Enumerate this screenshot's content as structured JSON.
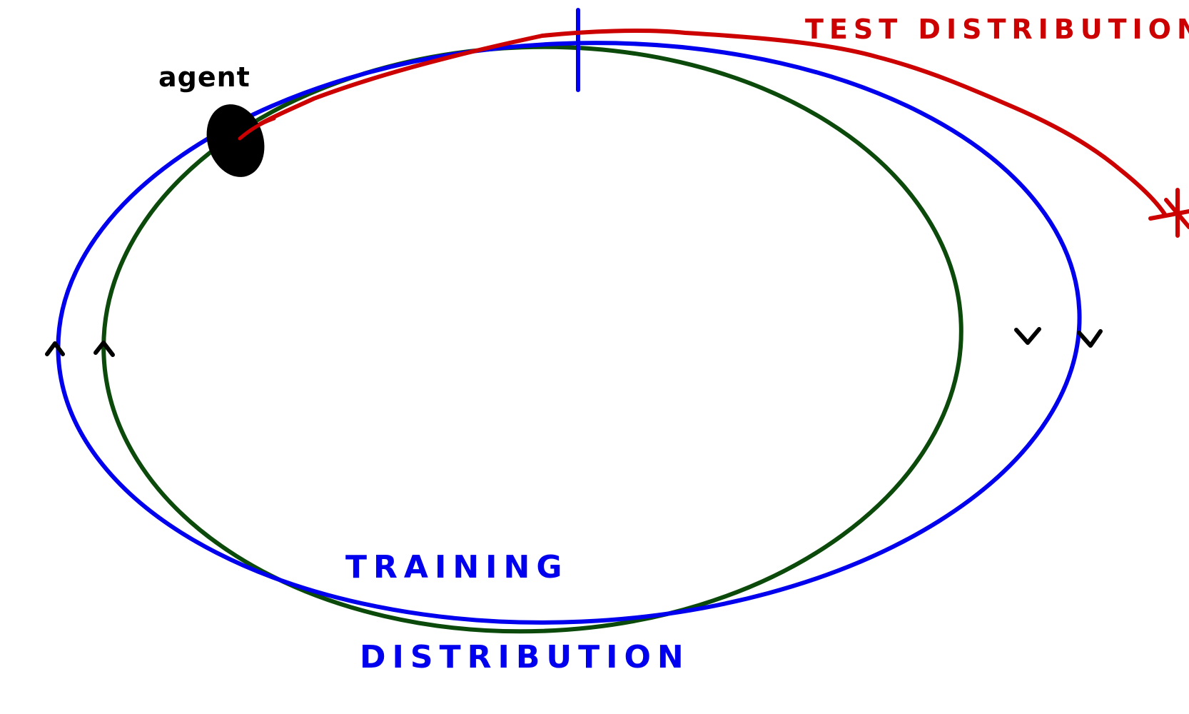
{
  "labels": {
    "agent": "agent",
    "test_distribution": "TEST DISTRIBUTION",
    "training": "TRAINING",
    "distribution": "DISTRIBUTION"
  },
  "colors": {
    "background": "#ffffff",
    "training_orbit": "#0000ee",
    "inner_orbit": "#0b4a0b",
    "test_path": "#cc0000",
    "agent": "#000000",
    "arrows": "#000000",
    "training_text": "#0000ee",
    "test_text": "#cc0000"
  },
  "icons": {
    "agent": "filled-ellipse",
    "end_marker": "asterisk-icon",
    "direction": "chevron-arrow-icon"
  }
}
